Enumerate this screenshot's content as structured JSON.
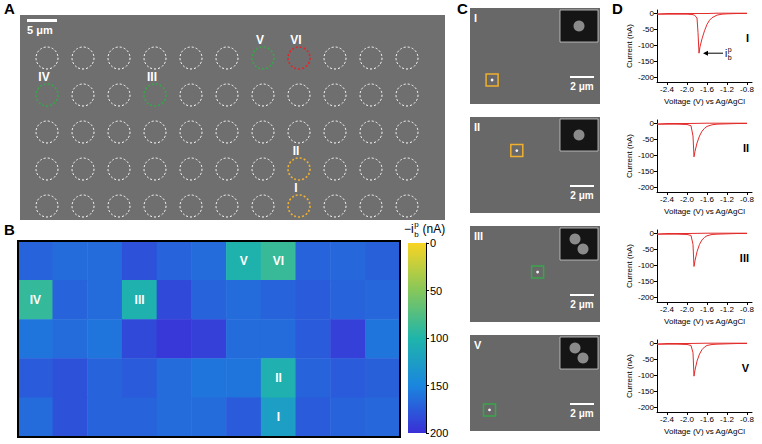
{
  "panel_labels": [
    "A",
    "B",
    "C",
    "D"
  ],
  "figure_A": {
    "scale_bar": "5 μm",
    "circle_grid": {
      "rows": 5,
      "cols": 11
    },
    "marked": [
      {
        "label": "V",
        "row": 0,
        "col": 6,
        "color": "#37a64a"
      },
      {
        "label": "VI",
        "row": 0,
        "col": 7,
        "color": "#e0262a"
      },
      {
        "label": "IV",
        "row": 1,
        "col": 0,
        "color": "#37a64a"
      },
      {
        "label": "III",
        "row": 1,
        "col": 3,
        "color": "#37a64a"
      },
      {
        "label": "II",
        "row": 3,
        "col": 7,
        "color": "#f0b030"
      },
      {
        "label": "I",
        "row": 4,
        "col": 7,
        "color": "#f0b030"
      }
    ]
  },
  "figure_C": {
    "scale_bar": "2 μm",
    "images": [
      {
        "label": "I",
        "color": "#f0b030",
        "particles": 1
      },
      {
        "label": "II",
        "color": "#f0b030",
        "particles": 1
      },
      {
        "label": "III",
        "color": "#37a64a",
        "particles": 2
      },
      {
        "label": "V",
        "color": "#37a64a",
        "particles": 2
      }
    ]
  },
  "chart_data": [
    {
      "type": "heatmap",
      "tick_labels": false,
      "values": [
        [
          170,
          165,
          165,
          180,
          170,
          165,
          103,
          88,
          170,
          168,
          172
        ],
        [
          90,
          170,
          165,
          104,
          185,
          170,
          165,
          170,
          175,
          170,
          168
        ],
        [
          160,
          165,
          160,
          185,
          195,
          190,
          165,
          165,
          175,
          190,
          160
        ],
        [
          175,
          180,
          170,
          175,
          165,
          160,
          160,
          105,
          170,
          175,
          172
        ],
        [
          165,
          180,
          170,
          170,
          165,
          165,
          175,
          125,
          175,
          170,
          168
        ]
      ],
      "cell_labels": [
        {
          "label": "V",
          "row": 0,
          "col": 6
        },
        {
          "label": "VI",
          "row": 0,
          "col": 7
        },
        {
          "label": "IV",
          "row": 1,
          "col": 0
        },
        {
          "label": "III",
          "row": 1,
          "col": 3
        },
        {
          "label": "II",
          "row": 3,
          "col": 7
        },
        {
          "label": "I",
          "row": 4,
          "col": 7
        }
      ],
      "colors": [
        "#f9d423",
        "#86c75a",
        "#1fb5aa",
        "#1a86de",
        "#3a2fd6"
      ],
      "colorbar": {
        "label": {
          "text": "−i",
          "subscript": "b",
          "superscript": "p",
          "suffix": " (nA)"
        },
        "range": [
          0,
          200
        ],
        "ticks": [
          0,
          50,
          100,
          150,
          200
        ]
      }
    },
    {
      "type": "line",
      "title": "I",
      "color": "#e32b2b",
      "x_label": "Voltage (V) vs Ag/AgCl",
      "y_label": "Current (nA)",
      "x": [
        -0.8,
        -1.0,
        -1.2,
        -1.3,
        -1.4,
        -1.5,
        -1.55,
        -1.6,
        -1.65,
        -1.7,
        -1.74,
        -1.76,
        -1.78,
        -1.8,
        -1.85,
        -1.9,
        -2.0,
        -2.2,
        -2.4,
        -2.6,
        -2.6,
        -2.4,
        -2.2,
        -2.0,
        -1.8,
        -1.6,
        -1.4,
        -1.2,
        -1.0,
        -0.8
      ],
      "values": [
        -1,
        -1,
        -2,
        -3,
        -6,
        -14,
        -22,
        -35,
        -55,
        -80,
        -105,
        -125,
        -60,
        -15,
        -6,
        -4,
        -3,
        -3,
        -3,
        -3,
        -1,
        -1,
        -1,
        -1,
        -1,
        -1,
        0,
        0,
        0,
        0
      ],
      "xlim": [
        -2.6,
        -0.7
      ],
      "xticks": [
        -2.4,
        {
          "value": -2,
          "label": "-2.0"
        },
        -1.6,
        -1.2,
        -0.8
      ],
      "ylim": [
        -215,
        10
      ],
      "yticks": [
        0,
        -50,
        -100,
        -150,
        -200
      ],
      "annotation": {
        "text": "i",
        "subscript": "b",
        "superscript": "p",
        "x": -1.76,
        "y": -125
      }
    },
    {
      "type": "line",
      "title": "II",
      "color": "#e32b2b",
      "x_label": "Voltage (V) vs Ag/AgCl",
      "y_label": "Current (nA)",
      "x": [
        -0.8,
        -1.0,
        -1.2,
        -1.4,
        -1.5,
        -1.6,
        -1.65,
        -1.7,
        -1.75,
        -1.8,
        -1.84,
        -1.86,
        -1.88,
        -1.92,
        -2.0,
        -2.2,
        -2.4,
        -2.6,
        -2.6,
        -2.4,
        -2.0,
        -1.6,
        -1.2,
        -0.8
      ],
      "values": [
        -1,
        -1,
        -2,
        -3,
        -5,
        -10,
        -16,
        -25,
        -40,
        -62,
        -88,
        -105,
        -40,
        -8,
        -4,
        -3,
        -3,
        -3,
        -1,
        -1,
        -1,
        0,
        0,
        0
      ],
      "xlim": [
        -2.6,
        -0.7
      ],
      "xticks": [
        -2.4,
        {
          "value": -2,
          "label": "-2.0"
        },
        -1.6,
        -1.2,
        -0.8
      ],
      "ylim": [
        -215,
        10
      ],
      "yticks": [
        0,
        -50,
        -100,
        -150,
        -200
      ]
    },
    {
      "type": "line",
      "title": "III",
      "color": "#e32b2b",
      "x_label": "Voltage (V) vs Ag/AgCl",
      "y_label": "Current (nA)",
      "x": [
        -0.8,
        -1.0,
        -1.2,
        -1.4,
        -1.5,
        -1.6,
        -1.65,
        -1.7,
        -1.75,
        -1.8,
        -1.84,
        -1.86,
        -1.88,
        -1.92,
        -2.0,
        -2.2,
        -2.4,
        -2.6,
        -2.6,
        -2.4,
        -2.0,
        -1.6,
        -1.2,
        -0.8
      ],
      "values": [
        -1,
        -1,
        -2,
        -3,
        -4,
        -8,
        -13,
        -21,
        -35,
        -58,
        -86,
        -104,
        -35,
        -7,
        -4,
        -3,
        -3,
        -3,
        -1,
        -1,
        -1,
        0,
        0,
        0
      ],
      "xlim": [
        -2.6,
        -0.7
      ],
      "xticks": [
        -2.4,
        {
          "value": -2,
          "label": "-2.0"
        },
        -1.6,
        -1.2,
        -0.8
      ],
      "ylim": [
        -215,
        10
      ],
      "yticks": [
        0,
        -50,
        -100,
        -150,
        -200
      ]
    },
    {
      "type": "line",
      "title": "V",
      "color": "#e32b2b",
      "x_label": "Voltage (V) vs Ag/AgCl",
      "y_label": "Current (nA)",
      "x": [
        -0.8,
        -1.0,
        -1.2,
        -1.4,
        -1.5,
        -1.6,
        -1.65,
        -1.7,
        -1.75,
        -1.8,
        -1.84,
        -1.86,
        -1.88,
        -1.92,
        -2.0,
        -2.2,
        -2.4,
        -2.6,
        -2.6,
        -2.4,
        -2.0,
        -1.6,
        -1.2,
        -0.8
      ],
      "values": [
        -1,
        -1,
        -2,
        -3,
        -4,
        -7,
        -12,
        -20,
        -34,
        -56,
        -84,
        -103,
        -30,
        -7,
        -4,
        -3,
        -3,
        -3,
        -1,
        -1,
        -1,
        0,
        0,
        0
      ],
      "xlim": [
        -2.6,
        -0.7
      ],
      "xticks": [
        -2.4,
        {
          "value": -2,
          "label": "-2.0"
        },
        -1.6,
        -1.2,
        -0.8
      ],
      "ylim": [
        -215,
        10
      ],
      "yticks": [
        0,
        -50,
        -100,
        -150,
        -200
      ]
    }
  ]
}
